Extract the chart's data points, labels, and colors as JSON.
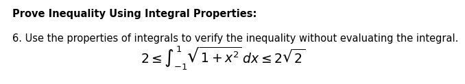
{
  "title": "Prove Inequality Using Integral Properties:",
  "line1": "6. Use the properties of integrals to verify the inequality without evaluating the integral.",
  "formula": "$2 \\leq \\int_{-1}^{1} \\sqrt{1+x^2}\\, dx \\leq 2\\sqrt{2}$",
  "bg_color": "#ffffff",
  "title_fontsize": 10.5,
  "line1_fontsize": 10.5,
  "formula_fontsize": 13.5
}
